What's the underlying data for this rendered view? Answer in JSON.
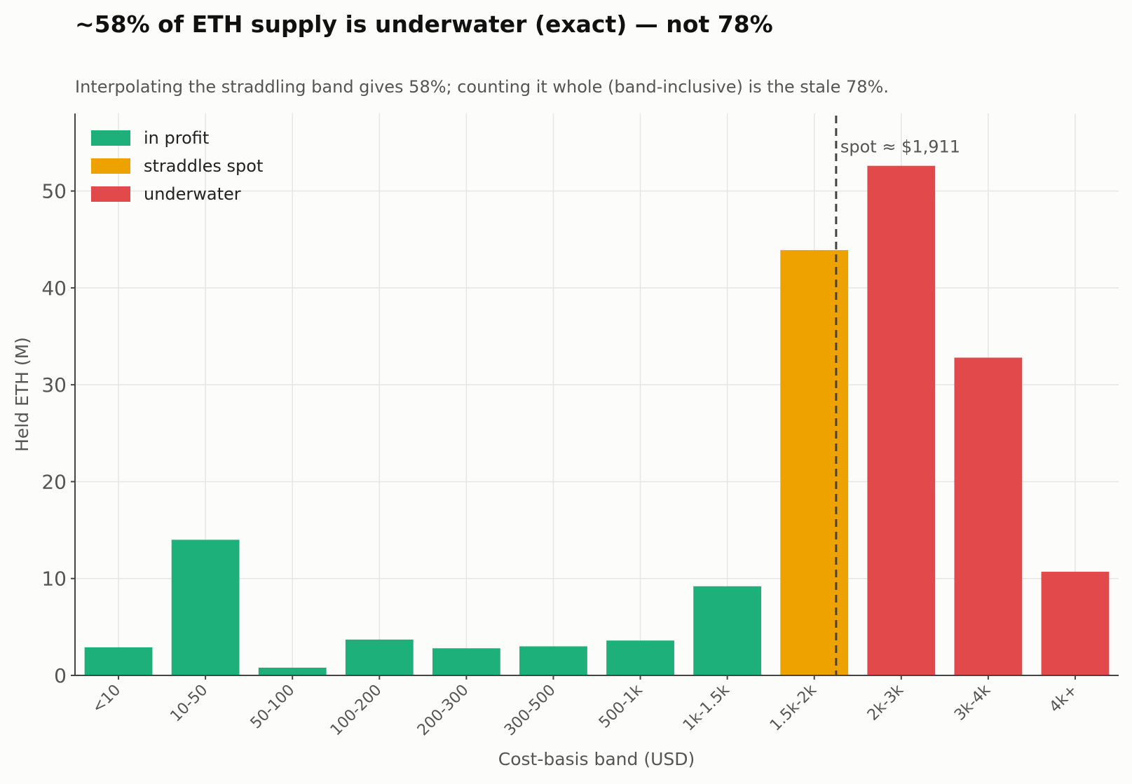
{
  "chart_data": {
    "type": "bar",
    "title": "~58% of ETH supply is underwater (exact) — not 78%",
    "subtitle": "Interpolating the straddling band gives 58%; counting it whole (band-inclusive) is the stale 78%.",
    "xlabel": "Cost-basis band (USD)",
    "ylabel": "Held ETH (M)",
    "ylim": [
      0,
      58
    ],
    "yticks": [
      0,
      10,
      20,
      30,
      40,
      50
    ],
    "grid": true,
    "legend_position": "top-left",
    "categories": [
      "<10",
      "10-50",
      "50-100",
      "100-200",
      "200-300",
      "300-500",
      "500-1k",
      "1k-1.5k",
      "1.5k-2k",
      "2k-3k",
      "3k-4k",
      "4k+"
    ],
    "values": [
      2.9,
      14.0,
      0.8,
      3.7,
      2.8,
      3.0,
      3.6,
      9.2,
      43.9,
      52.6,
      32.8,
      10.7
    ],
    "groups": [
      "profit",
      "profit",
      "profit",
      "profit",
      "profit",
      "profit",
      "profit",
      "profit",
      "straddle",
      "underwater",
      "underwater",
      "underwater"
    ],
    "legend": [
      {
        "key": "profit",
        "label": "in profit",
        "color": "#1db07a"
      },
      {
        "key": "straddle",
        "label": "straddles spot",
        "color": "#eea200"
      },
      {
        "key": "underwater",
        "label": "underwater",
        "color": "#e2494b"
      }
    ],
    "spot_line": {
      "label": "spot ≈ $1,911",
      "band": "1.5k-2k",
      "band_range": [
        1500,
        2000
      ],
      "value": 1911
    }
  }
}
